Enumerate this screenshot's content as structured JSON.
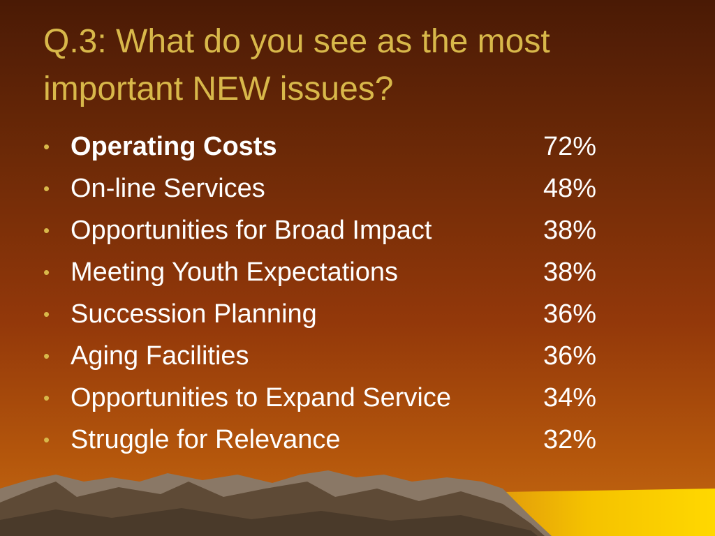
{
  "header": {
    "title": "Q.3: What do you see as the most important NEW issues?"
  },
  "items": [
    {
      "label": "Operating Costs",
      "value": "72%"
    },
    {
      "label": "On-line Services",
      "value": "48%"
    },
    {
      "label": "Opportunities for Broad Impact",
      "value": "38%"
    },
    {
      "label": "Meeting Youth Expectations",
      "value": "38%"
    },
    {
      "label": "Succession Planning",
      "value": "36%"
    },
    {
      "label": "Aging Facilities",
      "value": "36%"
    },
    {
      "label": "Opportunities to Expand Service",
      "value": "34%"
    },
    {
      "label": "Struggle for Relevance",
      "value": "32%"
    }
  ]
}
